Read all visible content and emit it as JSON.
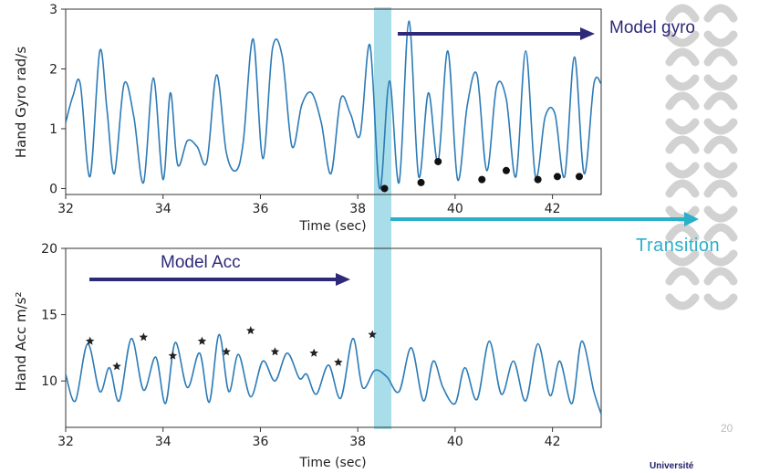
{
  "annotations": {
    "model_gyro": "Model gyro",
    "transition": "Transition",
    "model_acc": "Model Acc",
    "slide_number": "20",
    "university": "Université"
  },
  "colors": {
    "signal": "#2c7bb6",
    "highlight_band": "#a9dde9",
    "arrow_dark": "#2e2a7a",
    "arrow_cyan": "#2ab0c9",
    "pattern": "#d2d2d2"
  },
  "chart_data": [
    {
      "type": "line",
      "id": "gyro",
      "xlabel": "Time (sec)",
      "ylabel": "Hand Gyro rad/s",
      "xlim": [
        32,
        43
      ],
      "ylim": [
        -0.1,
        3.0
      ],
      "xticks": [
        32,
        34,
        36,
        38,
        40,
        42
      ],
      "yticks": [
        0,
        1,
        2,
        3
      ],
      "series": [
        {
          "x": [
            32.0,
            32.15,
            32.3,
            32.5,
            32.7,
            32.85,
            33.0,
            33.2,
            33.4,
            33.6,
            33.8,
            34.0,
            34.15,
            34.3,
            34.5,
            34.7,
            34.9,
            35.1,
            35.3,
            35.5,
            35.65,
            35.85,
            36.05,
            36.25,
            36.45,
            36.65,
            36.85,
            37.05,
            37.25,
            37.45,
            37.65,
            37.85,
            38.05,
            38.25,
            38.45,
            38.65,
            38.85,
            39.05,
            39.25,
            39.45,
            39.65,
            39.85,
            40.05,
            40.25,
            40.45,
            40.65,
            40.85,
            41.05,
            41.25,
            41.45,
            41.65,
            41.85,
            42.05,
            42.25,
            42.45,
            42.65,
            42.85,
            43.0
          ],
          "values": [
            1.1,
            1.55,
            1.75,
            0.2,
            2.3,
            1.3,
            0.25,
            1.75,
            1.2,
            0.1,
            1.85,
            0.15,
            1.6,
            0.4,
            0.8,
            0.7,
            0.45,
            1.9,
            0.6,
            0.3,
            0.8,
            2.5,
            0.5,
            2.35,
            2.2,
            0.7,
            1.4,
            1.6,
            1.1,
            0.25,
            1.5,
            1.25,
            0.9,
            2.4,
            0.0,
            1.8,
            0.1,
            2.8,
            0.2,
            1.6,
            0.45,
            2.3,
            0.15,
            1.4,
            1.9,
            0.3,
            1.7,
            1.5,
            0.2,
            2.3,
            0.2,
            1.2,
            1.25,
            0.2,
            2.2,
            0.25,
            1.75,
            1.75
          ]
        }
      ],
      "markers": {
        "shape": "dot",
        "x": [
          38.55,
          39.3,
          39.65,
          40.55,
          41.05,
          41.7,
          42.1,
          42.55
        ],
        "y": [
          0.0,
          0.1,
          0.45,
          0.15,
          0.3,
          0.15,
          0.2,
          0.2
        ]
      }
    },
    {
      "type": "line",
      "id": "acc",
      "xlabel": "Time (sec)",
      "ylabel": "Hand Acc m/s²",
      "xlim": [
        32,
        43
      ],
      "ylim": [
        6.5,
        20
      ],
      "xticks": [
        32,
        34,
        36,
        38,
        40,
        42
      ],
      "yticks": [
        10,
        15,
        20
      ],
      "series": [
        {
          "x": [
            32.0,
            32.2,
            32.45,
            32.7,
            32.9,
            33.1,
            33.35,
            33.6,
            33.85,
            34.05,
            34.25,
            34.5,
            34.75,
            34.95,
            35.15,
            35.35,
            35.55,
            35.8,
            36.05,
            36.3,
            36.55,
            36.8,
            36.95,
            37.15,
            37.4,
            37.65,
            37.9,
            38.1,
            38.35,
            38.6,
            38.85,
            39.1,
            39.35,
            39.55,
            39.75,
            40.0,
            40.2,
            40.45,
            40.7,
            40.95,
            41.2,
            41.45,
            41.7,
            41.95,
            42.15,
            42.4,
            42.6,
            42.85,
            43.0
          ],
          "values": [
            10.5,
            8.5,
            12.8,
            9.2,
            11.0,
            8.5,
            13.2,
            9.3,
            11.8,
            8.3,
            12.9,
            9.5,
            12.1,
            8.4,
            13.5,
            9.2,
            12.0,
            8.8,
            11.5,
            10.0,
            12.1,
            10.2,
            10.5,
            9.0,
            11.2,
            8.7,
            13.2,
            9.5,
            10.8,
            10.3,
            9.2,
            12.5,
            8.5,
            11.5,
            9.5,
            8.3,
            11.0,
            8.6,
            13.0,
            9.0,
            11.5,
            8.5,
            12.8,
            8.9,
            11.5,
            8.3,
            13.0,
            9.2,
            7.5
          ]
        }
      ],
      "markers": {
        "shape": "star",
        "x": [
          32.5,
          33.05,
          33.6,
          34.2,
          34.8,
          35.3,
          35.8,
          36.3,
          37.1,
          37.6,
          38.3
        ],
        "y": [
          13.0,
          11.1,
          13.3,
          11.9,
          13.0,
          12.2,
          13.8,
          12.2,
          12.1,
          11.4,
          13.5
        ]
      }
    }
  ]
}
